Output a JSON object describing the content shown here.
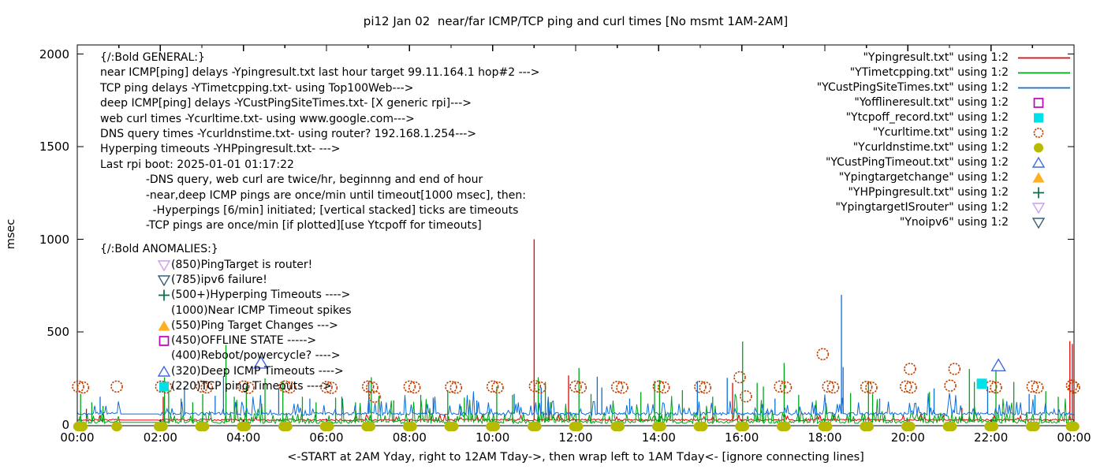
{
  "title": "pi12 Jan 02  near/far ICMP/TCP ping and curl times [No msmt 1AM-2AM]",
  "ylabel": "msec",
  "xlabel": "<-START at 2AM Yday, right to 12AM Tday->, then wrap left to 1AM Tday<- [ignore connecting lines]",
  "axes": {
    "ylim": [
      0,
      2000
    ],
    "yticks": [
      0,
      500,
      1000,
      1500,
      2000
    ],
    "xtick_hours": [
      0,
      2,
      4,
      6,
      8,
      10,
      12,
      14,
      16,
      18,
      20,
      22,
      24
    ],
    "xtick_labels": [
      "00:00",
      "02:00",
      "04:00",
      "06:00",
      "08:00",
      "10:00",
      "12:00",
      "14:00",
      "16:00",
      "18:00",
      "20:00",
      "22:00",
      "00:00"
    ],
    "minor_xtick_hours": [
      1,
      3,
      5,
      7,
      9,
      11,
      13,
      15,
      17,
      19,
      21,
      23
    ]
  },
  "annotations": {
    "general": {
      "lines": [
        "{/:Bold GENERAL:}",
        "near ICMP[ping] delays -Ypingresult.txt last hour target 99.11.164.1 hop#2 --->",
        "TCP ping delays -YTimetcpping.txt- using Top100Web--->",
        "deep ICMP[ping] delays -YCustPingSiteTimes.txt- [X generic rpi]--->",
        "web curl times -Ycurltime.txt- using www.google.com--->",
        "DNS query times -Ycurldnstime.txt- using router? 192.168.1.254--->",
        "Hyperping timeouts -YHPpingresult.txt- --->",
        "Last rpi boot: 2025-01-01 01:17:22",
        "             -DNS query, web curl are twice/hr, beginnng and end of hour",
        "             -near,deep ICMP pings are once/min until timeout[1000 msec], then:",
        "               -Hyperpings [6/min] initiated; [vertical stacked] ticks are timeouts",
        "             -TCP pings are once/min [if plotted][use Ytcpoff for timeouts]"
      ]
    },
    "anomalies": {
      "header": "{/:Bold ANOMALIES:}",
      "items": [
        {
          "marker": "open-down-triangle",
          "color": "#c9a0f0",
          "text": "(850)PingTarget is router!"
        },
        {
          "marker": "open-down-triangle",
          "color": "#35607a",
          "text": "(785)ipv6 failure!"
        },
        {
          "marker": "plus",
          "color": "#0e6b4a",
          "text": "(500+)Hyperping Timeouts ---->"
        },
        {
          "marker": "none",
          "color": "",
          "text": "(1000)Near ICMP Timeout spikes"
        },
        {
          "marker": "filled-up-triangle",
          "color": "#ffaf1f",
          "text": "(550)Ping Target Changes --->"
        },
        {
          "marker": "open-square",
          "color": "#bf00bf",
          "text": "(450)OFFLINE STATE ----->"
        },
        {
          "marker": "none",
          "color": "",
          "text": "(400)Reboot/powercycle? ---->"
        },
        {
          "marker": "open-up-triangle",
          "color": "#4169e1",
          "text": "(320)Deep ICMP Timeouts ---->"
        },
        {
          "marker": "filled-square",
          "color": "#00e0e6",
          "text": "(220)TCP ping Timeouts ---->"
        }
      ]
    }
  },
  "legend": {
    "items": [
      {
        "label": "\"Ypingresult.txt\" using 1:2",
        "type": "line",
        "color": "#e60000"
      },
      {
        "label": "\"YTimetcpping.txt\" using 1:2",
        "type": "line",
        "color": "#00a318"
      },
      {
        "label": "\"YCustPingSiteTimes.txt\" using 1:2",
        "type": "line",
        "color": "#0c6ed8"
      },
      {
        "label": "\"Yofflineresult.txt\" using 1:2",
        "type": "open-square",
        "color": "#bf00bf"
      },
      {
        "label": "\"Ytcpoff_record.txt\" using 1:2",
        "type": "filled-square",
        "color": "#00e0e6"
      },
      {
        "label": "\"Ycurltime.txt\" using 1:2",
        "type": "open-circle",
        "color": "#c04000"
      },
      {
        "label": "\"Ycurldnstime.txt\" using 1:2",
        "type": "filled-circle",
        "color": "#b8ba00"
      },
      {
        "label": "\"YCustPingTimeout.txt\" using 1:2",
        "type": "open-up-triangle",
        "color": "#4169e1"
      },
      {
        "label": "\"Ypingtargetchange\" using 1:2",
        "type": "filled-up-triangle",
        "color": "#ffaf1f"
      },
      {
        "label": "\"YHPpingresult.txt\" using 1:2",
        "type": "plus",
        "color": "#0e6b4a"
      },
      {
        "label": "\"YpingtargetISrouter\" using 1:2",
        "type": "open-down-triangle",
        "color": "#c9a0f0"
      },
      {
        "label": "\"Ynoipv6\" using 1:2",
        "type": "open-down-triangle",
        "color": "#35607a"
      }
    ]
  },
  "chart_data": {
    "type": "line",
    "x_unit": "hour_of_day",
    "y_unit": "msec",
    "ylim": [
      0,
      2000
    ],
    "no_measurement_gap_hours": [
      1.04,
      1.96
    ],
    "series": [
      {
        "name": "Ypingresult.txt",
        "style": "line",
        "color": "#e60000",
        "baseline_msec": 24,
        "spikes": [
          [
            0.22,
            85
          ],
          [
            2.07,
            150
          ],
          [
            11.0,
            1000
          ],
          [
            11.35,
            120
          ],
          [
            11.83,
            265
          ],
          [
            15.78,
            225
          ],
          [
            21.3,
            90
          ],
          [
            23.9,
            450
          ],
          [
            23.96,
            435
          ]
        ]
      },
      {
        "name": "YTimetcpping.txt",
        "style": "line",
        "color": "#00a318",
        "baseline_msec": 12,
        "spikes": [
          [
            0.08,
            165
          ],
          [
            0.35,
            120
          ],
          [
            0.62,
            100
          ],
          [
            2.1,
            255
          ],
          [
            2.2,
            190
          ],
          [
            2.5,
            140
          ],
          [
            2.78,
            120
          ],
          [
            3.02,
            165
          ],
          [
            3.58,
            430
          ],
          [
            3.78,
            150
          ],
          [
            4.07,
            210
          ],
          [
            4.52,
            250
          ],
          [
            4.95,
            235
          ],
          [
            5.42,
            150
          ],
          [
            5.75,
            120
          ],
          [
            6.22,
            145
          ],
          [
            6.7,
            120
          ],
          [
            7.08,
            255
          ],
          [
            7.62,
            130
          ],
          [
            8.27,
            160
          ],
          [
            8.92,
            185
          ],
          [
            9.32,
            145
          ],
          [
            10.1,
            205
          ],
          [
            10.48,
            160
          ],
          [
            11.1,
            255
          ],
          [
            11.27,
            230
          ],
          [
            12.08,
            305
          ],
          [
            12.37,
            165
          ],
          [
            13.57,
            175
          ],
          [
            13.9,
            235
          ],
          [
            14.02,
            240
          ],
          [
            14.57,
            185
          ],
          [
            15.3,
            150
          ],
          [
            16.02,
            448
          ],
          [
            16.37,
            225
          ],
          [
            16.52,
            205
          ],
          [
            17.02,
            332
          ],
          [
            17.37,
            160
          ],
          [
            18.62,
            170
          ],
          [
            19.05,
            230
          ],
          [
            19.15,
            165
          ],
          [
            20.52,
            175
          ],
          [
            21.48,
            300
          ],
          [
            21.6,
            230
          ],
          [
            22.12,
            295
          ],
          [
            22.55,
            230
          ],
          [
            23.32,
            180
          ],
          [
            23.62,
            150
          ]
        ]
      },
      {
        "name": "YCustPingSiteTimes.txt",
        "style": "line",
        "color": "#0c6ed8",
        "baseline_msec": 57,
        "spikes": [
          [
            0.55,
            150
          ],
          [
            2.58,
            205
          ],
          [
            3.32,
            155
          ],
          [
            3.52,
            262
          ],
          [
            4.85,
            195
          ],
          [
            5.6,
            140
          ],
          [
            6.37,
            150
          ],
          [
            7.02,
            235
          ],
          [
            8.57,
            145
          ],
          [
            9.62,
            130
          ],
          [
            10.52,
            165
          ],
          [
            11.17,
            200
          ],
          [
            12.52,
            258
          ],
          [
            12.63,
            200
          ],
          [
            13.3,
            140
          ],
          [
            14.93,
            235
          ],
          [
            15.65,
            252
          ],
          [
            16.8,
            140
          ],
          [
            18.4,
            700
          ],
          [
            18.44,
            310
          ],
          [
            19.32,
            140
          ],
          [
            20.63,
            195
          ],
          [
            21.92,
            205
          ],
          [
            22.92,
            165
          ],
          [
            23.06,
            160
          ]
        ]
      },
      {
        "name": "Ycurltime.txt",
        "style": "open-circle",
        "color": "#c04000",
        "points": [
          [
            0.02,
            205
          ],
          [
            0.14,
            200
          ],
          [
            0.95,
            205
          ],
          [
            2.02,
            205
          ],
          [
            2.14,
            200
          ],
          [
            3.0,
            205
          ],
          [
            3.12,
            200
          ],
          [
            4.0,
            205
          ],
          [
            4.12,
            198
          ],
          [
            5.0,
            205
          ],
          [
            5.12,
            200
          ],
          [
            6.0,
            202
          ],
          [
            6.12,
            198
          ],
          [
            7.0,
            205
          ],
          [
            7.1,
            200
          ],
          [
            7.16,
            150
          ],
          [
            8.0,
            205
          ],
          [
            8.12,
            200
          ],
          [
            9.0,
            203
          ],
          [
            9.12,
            199
          ],
          [
            10.0,
            205
          ],
          [
            10.12,
            200
          ],
          [
            11.02,
            207
          ],
          [
            11.14,
            200
          ],
          [
            12.0,
            205
          ],
          [
            12.12,
            200
          ],
          [
            13.0,
            203
          ],
          [
            13.12,
            199
          ],
          [
            14.0,
            205
          ],
          [
            14.12,
            200
          ],
          [
            15.0,
            203
          ],
          [
            15.12,
            199
          ],
          [
            15.95,
            255
          ],
          [
            16.1,
            152
          ],
          [
            16.92,
            205
          ],
          [
            17.06,
            200
          ],
          [
            17.95,
            380
          ],
          [
            18.08,
            205
          ],
          [
            18.2,
            200
          ],
          [
            19.0,
            203
          ],
          [
            19.12,
            199
          ],
          [
            19.95,
            205
          ],
          [
            20.05,
            300
          ],
          [
            20.07,
            200
          ],
          [
            21.02,
            210
          ],
          [
            21.12,
            300
          ],
          [
            22.0,
            205
          ],
          [
            22.12,
            200
          ],
          [
            23.0,
            205
          ],
          [
            23.12,
            200
          ],
          [
            23.95,
            210
          ],
          [
            24.0,
            200
          ]
        ]
      },
      {
        "name": "Ycurldnstime.txt",
        "style": "filled-circle",
        "color": "#b8ba00",
        "value_msec": 0,
        "hours": [
          0.03,
          0.12,
          0.95,
          1.97,
          2.05,
          2.97,
          3.05,
          3.97,
          4.05,
          4.97,
          5.05,
          5.97,
          6.05,
          6.97,
          7.05,
          7.97,
          8.05,
          8.97,
          9.05,
          9.97,
          10.05,
          10.97,
          11.05,
          11.97,
          12.05,
          12.97,
          13.05,
          13.97,
          14.05,
          14.97,
          15.05,
          15.97,
          16.05,
          16.97,
          17.05,
          17.97,
          18.05,
          18.97,
          19.05,
          19.97,
          20.05,
          20.97,
          21.05,
          21.97,
          22.05,
          22.97,
          23.05,
          23.93,
          24.0
        ]
      },
      {
        "name": "Ytcpoff_record.txt",
        "style": "filled-square",
        "color": "#00e0e6",
        "points": [
          [
            21.78,
            220
          ]
        ]
      },
      {
        "name": "YCustPingTimeout.txt",
        "style": "open-up-triangle",
        "color": "#4169e1",
        "points": [
          [
            4.42,
            332
          ],
          [
            22.18,
            318
          ]
        ]
      }
    ]
  }
}
